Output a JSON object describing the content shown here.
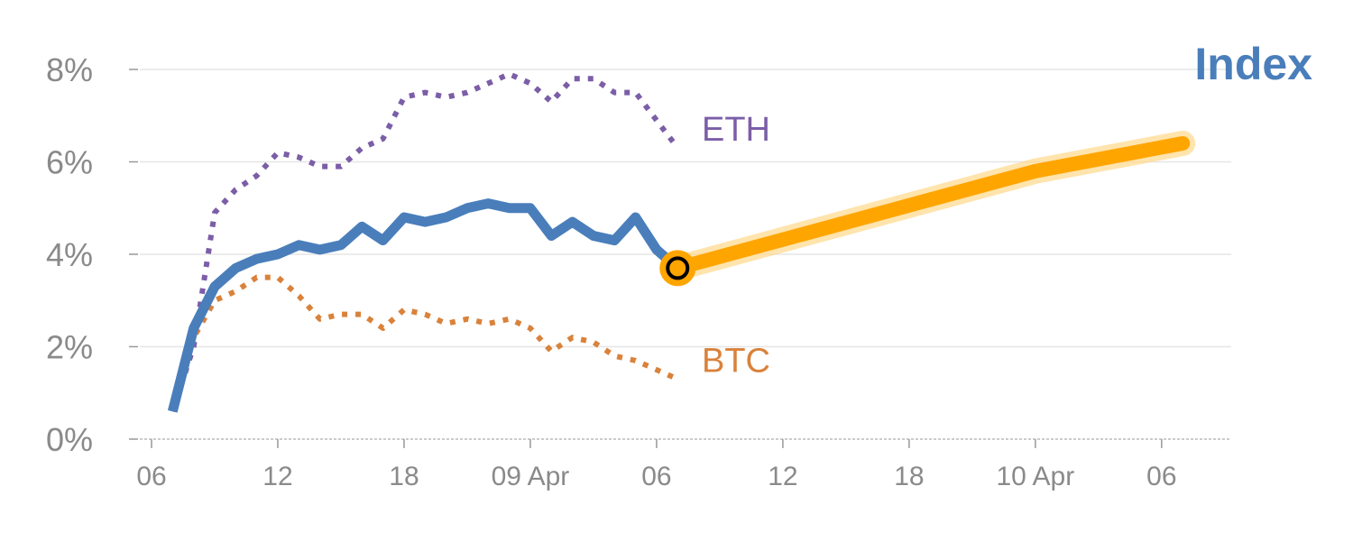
{
  "chart_data": {
    "type": "line",
    "title": "Index",
    "xlabel": "",
    "ylabel": "",
    "ylim": [
      0,
      8
    ],
    "grid": true,
    "y_ticks": [
      {
        "value": 0,
        "label": "0%"
      },
      {
        "value": 2,
        "label": "2%"
      },
      {
        "value": 4,
        "label": "4%"
      },
      {
        "value": 6,
        "label": "6%"
      },
      {
        "value": 8,
        "label": "8%"
      }
    ],
    "x_ticks": [
      {
        "value": 0,
        "label": "06"
      },
      {
        "value": 6,
        "label": "12"
      },
      {
        "value": 12,
        "label": "18"
      },
      {
        "value": 18,
        "label": "09 Apr"
      },
      {
        "value": 24,
        "label": "06"
      },
      {
        "value": 30,
        "label": "12"
      },
      {
        "value": 36,
        "label": "18"
      },
      {
        "value": 42,
        "label": "10 Apr"
      },
      {
        "value": 48,
        "label": "06"
      }
    ],
    "series": [
      {
        "name": "ETH",
        "color": "#7b5ea7",
        "style": "dotted",
        "x": [
          1,
          2,
          3,
          4,
          5,
          6,
          7,
          8,
          9,
          10,
          11,
          12,
          13,
          14,
          15,
          16,
          17,
          18,
          19,
          20,
          21,
          22,
          23,
          24,
          25
        ],
        "values": [
          0.6,
          2.0,
          4.9,
          5.4,
          5.7,
          6.2,
          6.1,
          5.9,
          5.9,
          6.3,
          6.5,
          7.4,
          7.5,
          7.4,
          7.5,
          7.7,
          7.9,
          7.7,
          7.3,
          7.8,
          7.8,
          7.5,
          7.5,
          6.9,
          6.3
        ]
      },
      {
        "name": "BTC",
        "color": "#d9823b",
        "style": "dotted",
        "x": [
          1,
          2,
          3,
          4,
          5,
          6,
          7,
          8,
          9,
          10,
          11,
          12,
          13,
          14,
          15,
          16,
          17,
          18,
          19,
          20,
          21,
          22,
          23,
          24,
          25
        ],
        "values": [
          0.6,
          2.2,
          3.0,
          3.2,
          3.5,
          3.5,
          3.1,
          2.6,
          2.7,
          2.7,
          2.4,
          2.8,
          2.7,
          2.5,
          2.6,
          2.5,
          2.6,
          2.4,
          1.9,
          2.2,
          2.1,
          1.8,
          1.7,
          1.5,
          1.3
        ]
      },
      {
        "name": "",
        "color": "#4a7ebb",
        "style": "solid",
        "x": [
          1,
          2,
          3,
          4,
          5,
          6,
          7,
          8,
          9,
          10,
          11,
          12,
          13,
          14,
          15,
          16,
          17,
          18,
          19,
          20,
          21,
          22,
          23,
          24,
          25
        ],
        "values": [
          0.6,
          2.4,
          3.3,
          3.7,
          3.9,
          4.0,
          4.2,
          4.1,
          4.2,
          4.6,
          4.3,
          4.8,
          4.7,
          4.8,
          5.0,
          5.1,
          5.0,
          5.0,
          4.4,
          4.7,
          4.4,
          4.3,
          4.8,
          4.1,
          3.7
        ]
      },
      {
        "name": "",
        "color": "#ffa500",
        "style": "projection",
        "x": [
          25,
          42,
          49
        ],
        "values": [
          3.7,
          5.8,
          6.4
        ]
      }
    ],
    "marker": {
      "x": 25,
      "y": 3.7,
      "color": "#ffa500"
    }
  }
}
